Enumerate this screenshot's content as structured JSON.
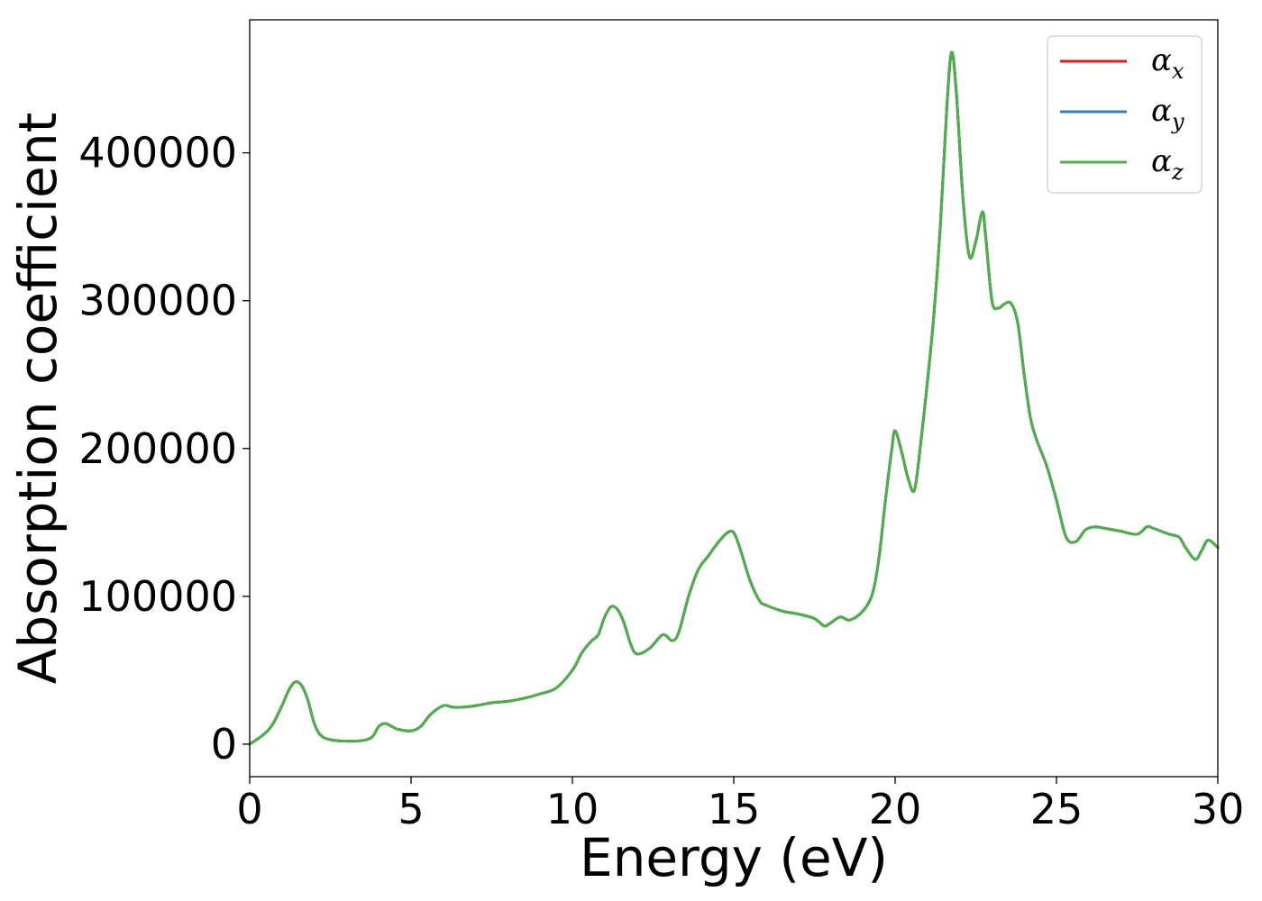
{
  "chart_data": {
    "type": "line",
    "title": "",
    "xlabel": "Energy (eV)",
    "ylabel": "Absorption coefficient",
    "xlim": [
      0,
      30
    ],
    "ylim": [
      -22000,
      490000
    ],
    "xticks": [
      0,
      5,
      10,
      15,
      20,
      25,
      30
    ],
    "yticks": [
      0,
      100000,
      200000,
      300000,
      400000
    ],
    "xtick_labels": [
      "0",
      "5",
      "10",
      "15",
      "20",
      "25",
      "30"
    ],
    "ytick_labels": [
      "0",
      "100000",
      "200000",
      "300000",
      "400000"
    ],
    "grid": false,
    "legend_position": "top-right",
    "x": [
      0,
      0.4,
      0.7,
      1.0,
      1.2,
      1.4,
      1.6,
      1.8,
      2.0,
      2.2,
      2.5,
      3.0,
      3.5,
      3.8,
      4.0,
      4.2,
      4.4,
      4.6,
      5.0,
      5.3,
      5.6,
      6.0,
      6.3,
      6.6,
      7.0,
      7.5,
      8.0,
      8.5,
      9.0,
      9.5,
      10.0,
      10.3,
      10.6,
      10.8,
      11.0,
      11.2,
      11.4,
      11.6,
      11.8,
      12.0,
      12.4,
      12.8,
      13.1,
      13.3,
      13.6,
      13.9,
      14.2,
      14.5,
      14.8,
      15.0,
      15.2,
      15.5,
      15.8,
      16.0,
      16.5,
      17.0,
      17.5,
      17.8,
      18.0,
      18.3,
      18.6,
      19.0,
      19.3,
      19.5,
      19.7,
      19.9,
      20.0,
      20.2,
      20.4,
      20.6,
      20.8,
      21.0,
      21.2,
      21.4,
      21.6,
      21.75,
      21.9,
      22.1,
      22.3,
      22.5,
      22.7,
      22.8,
      23.0,
      23.2,
      23.4,
      23.6,
      23.8,
      24.0,
      24.2,
      24.4,
      24.7,
      25.0,
      25.3,
      25.6,
      25.9,
      26.2,
      26.5,
      27.0,
      27.5,
      27.8,
      28.0,
      28.5,
      28.8,
      29.0,
      29.3,
      29.5,
      29.7,
      30.0
    ],
    "series": [
      {
        "name": "α_x",
        "color": "#e41a1c",
        "values": [
          0,
          6000,
          13000,
          26000,
          36000,
          42000,
          40000,
          30000,
          14000,
          6000,
          3000,
          2000,
          2500,
          5000,
          12000,
          14000,
          12000,
          10000,
          9000,
          12000,
          20000,
          26000,
          25000,
          25000,
          26000,
          28000,
          29000,
          31000,
          34000,
          38000,
          50000,
          62000,
          70000,
          74000,
          86000,
          93000,
          91000,
          82000,
          68000,
          61000,
          65000,
          74000,
          70000,
          76000,
          100000,
          118000,
          127000,
          136000,
          143000,
          143000,
          132000,
          111000,
          97000,
          94000,
          90000,
          88000,
          85000,
          80000,
          82000,
          86000,
          84000,
          90000,
          102000,
          126000,
          165000,
          200000,
          212000,
          198000,
          180000,
          172000,
          205000,
          245000,
          290000,
          350000,
          430000,
          468000,
          440000,
          370000,
          330000,
          340000,
          360000,
          345000,
          300000,
          295000,
          298000,
          298000,
          285000,
          250000,
          220000,
          205000,
          188000,
          165000,
          140000,
          137000,
          145000,
          147000,
          146000,
          144000,
          142000,
          147000,
          146000,
          142000,
          140000,
          133000,
          125000,
          131000,
          138000,
          133000
        ]
      },
      {
        "name": "α_y",
        "color": "#377eb8",
        "values": [
          0,
          6000,
          13000,
          26000,
          36000,
          42000,
          40000,
          30000,
          14000,
          6000,
          3000,
          2000,
          2500,
          5000,
          12000,
          14000,
          12000,
          10000,
          9000,
          12000,
          20000,
          26000,
          25000,
          25000,
          26000,
          28000,
          29000,
          31000,
          34000,
          38000,
          50000,
          62000,
          70000,
          74000,
          86000,
          93000,
          91000,
          82000,
          68000,
          61000,
          65000,
          74000,
          70000,
          76000,
          100000,
          118000,
          127000,
          136000,
          143000,
          143000,
          132000,
          111000,
          97000,
          94000,
          90000,
          88000,
          85000,
          80000,
          82000,
          86000,
          84000,
          90000,
          102000,
          126000,
          165000,
          200000,
          212000,
          198000,
          180000,
          172000,
          205000,
          245000,
          290000,
          350000,
          430000,
          468000,
          440000,
          370000,
          330000,
          340000,
          360000,
          345000,
          300000,
          295000,
          298000,
          298000,
          285000,
          250000,
          220000,
          205000,
          188000,
          165000,
          140000,
          137000,
          145000,
          147000,
          146000,
          144000,
          142000,
          147000,
          146000,
          142000,
          140000,
          133000,
          125000,
          131000,
          138000,
          133000
        ]
      },
      {
        "name": "α_z",
        "color": "#4daf4a",
        "values": [
          0,
          6000,
          13000,
          26000,
          36000,
          42000,
          40000,
          30000,
          14000,
          6000,
          3000,
          2000,
          2500,
          5000,
          12000,
          14000,
          12000,
          10000,
          9000,
          12000,
          20000,
          26000,
          25000,
          25000,
          26000,
          28000,
          29000,
          31000,
          34000,
          38000,
          50000,
          62000,
          70000,
          74000,
          86000,
          93000,
          91000,
          82000,
          68000,
          61000,
          65000,
          74000,
          70000,
          76000,
          100000,
          118000,
          127000,
          136000,
          143000,
          143000,
          132000,
          111000,
          97000,
          94000,
          90000,
          88000,
          85000,
          80000,
          82000,
          86000,
          84000,
          90000,
          102000,
          126000,
          165000,
          200000,
          212000,
          198000,
          180000,
          172000,
          205000,
          245000,
          290000,
          350000,
          430000,
          468000,
          440000,
          370000,
          330000,
          340000,
          360000,
          345000,
          300000,
          295000,
          298000,
          298000,
          285000,
          250000,
          220000,
          205000,
          188000,
          165000,
          140000,
          137000,
          145000,
          147000,
          146000,
          144000,
          142000,
          147000,
          146000,
          142000,
          140000,
          133000,
          125000,
          131000,
          138000,
          133000
        ]
      }
    ],
    "legend": [
      {
        "symbol": "α",
        "subscript": "x"
      },
      {
        "symbol": "α",
        "subscript": "y"
      },
      {
        "symbol": "α",
        "subscript": "z"
      }
    ]
  }
}
